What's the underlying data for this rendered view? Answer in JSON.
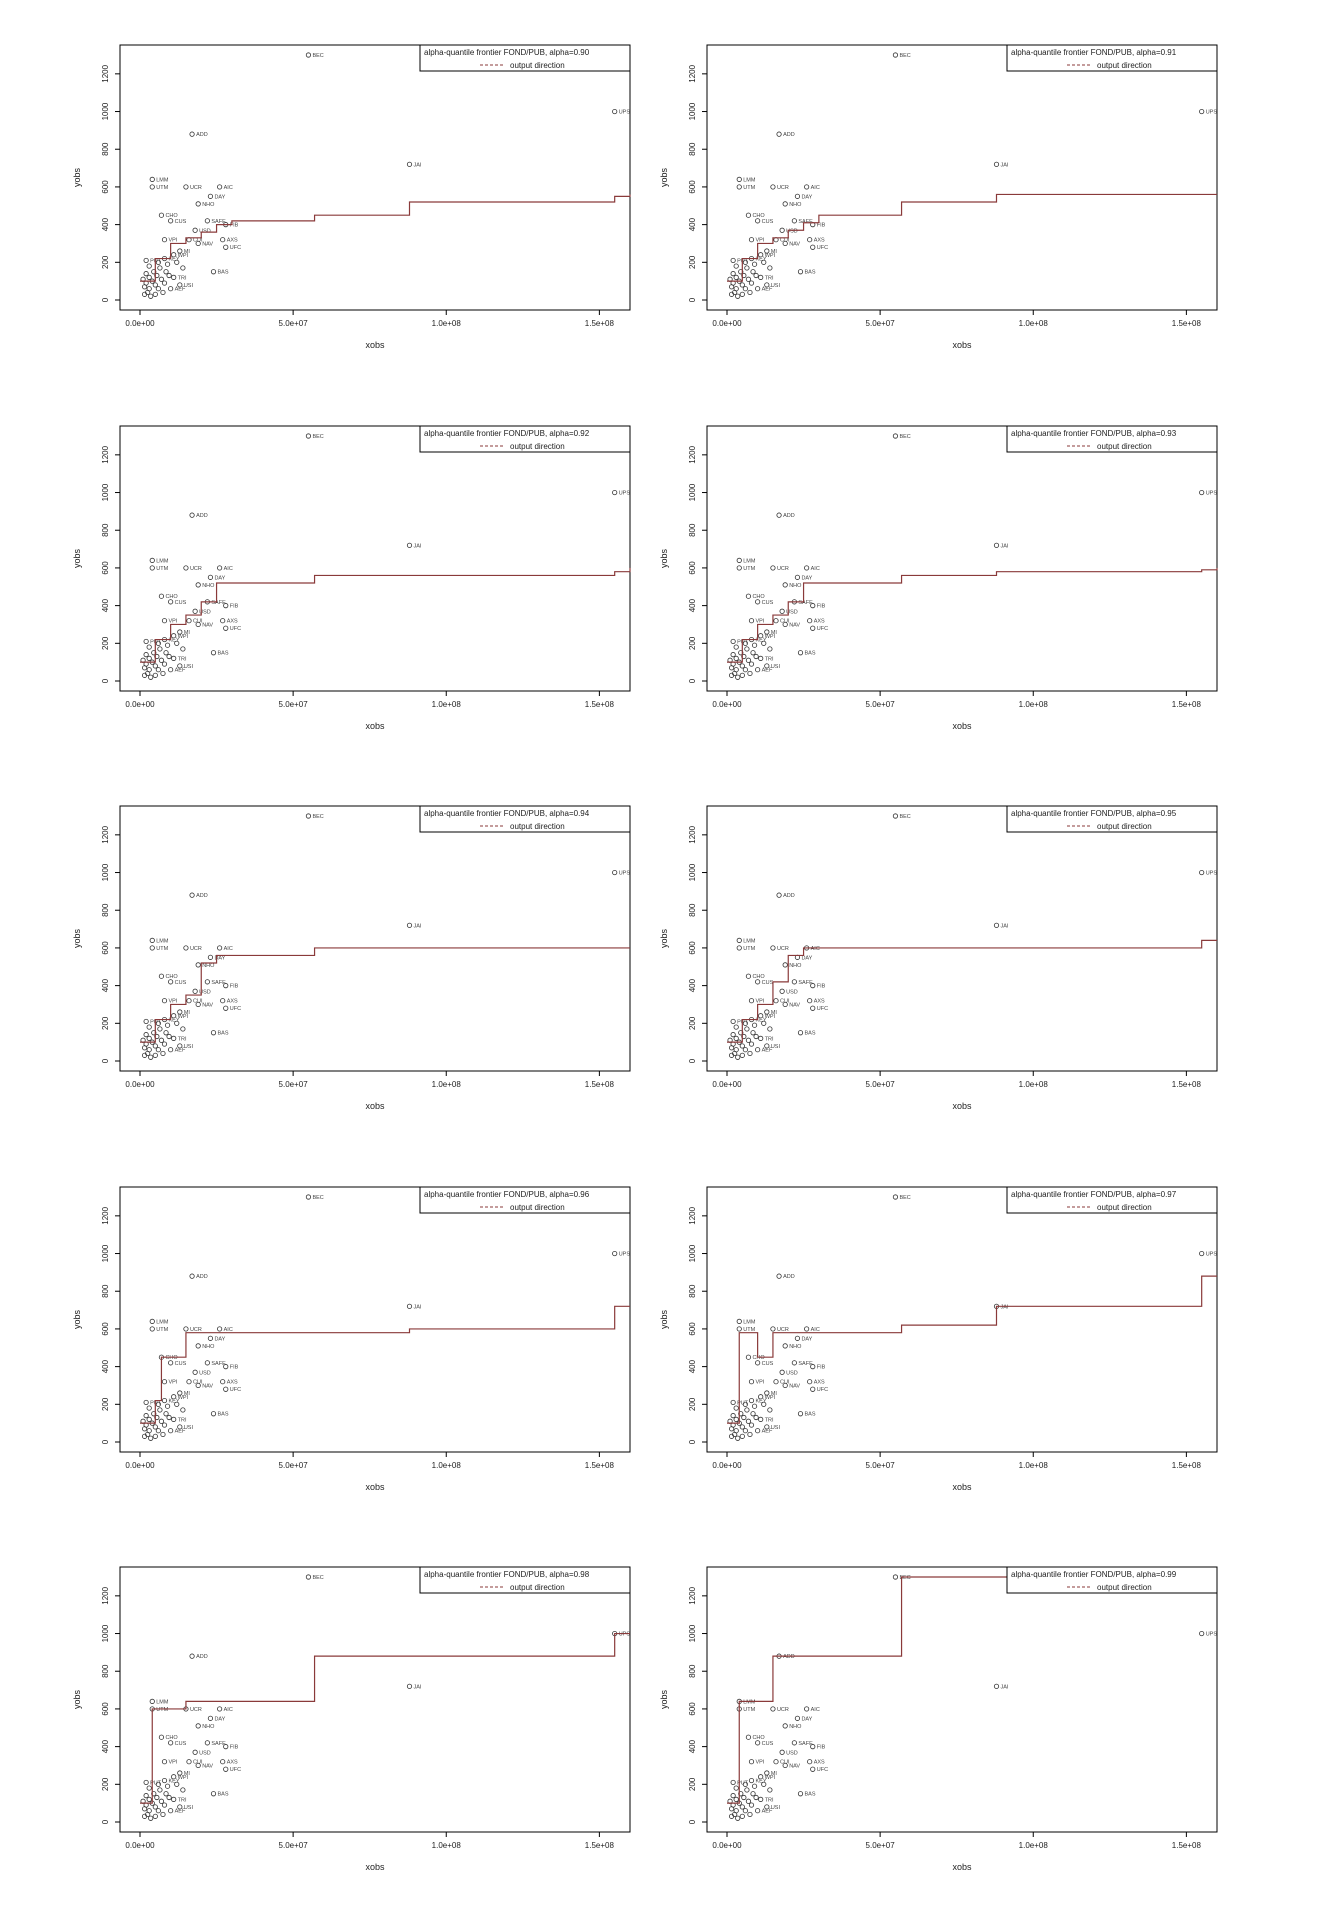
{
  "chart_data": [
    {
      "type": "scatter",
      "title": "",
      "legend": {
        "label": "alpha-quantile frontier FOND/PUB, alpha=0.90",
        "sub": "output direction",
        "position": "top-right"
      },
      "xlabel": "xobs",
      "ylabel": "yobs",
      "xlim": [
        0,
        160000000
      ],
      "ylim": [
        0,
        1300
      ],
      "xticks": [
        "0.0e+00",
        "5.0e+07",
        "1.0e+08",
        "1.5e+08"
      ],
      "yticks": [
        "0",
        "200",
        "400",
        "600",
        "800",
        "1000",
        "1200"
      ],
      "frontier": {
        "x": [
          0,
          5000000,
          10000000,
          15000000,
          20000000,
          25000000,
          30000000,
          57000000,
          88000000,
          155000000,
          160000000
        ],
        "y": [
          100,
          220,
          300,
          330,
          360,
          400,
          420,
          450,
          520,
          550,
          560
        ]
      }
    },
    {
      "type": "scatter",
      "title": "",
      "legend": {
        "label": "alpha-quantile frontier FOND/PUB, alpha=0.91",
        "sub": "output direction",
        "position": "top-right"
      },
      "xlabel": "xobs",
      "ylabel": "yobs",
      "xlim": [
        0,
        160000000
      ],
      "ylim": [
        0,
        1300
      ],
      "xticks": [
        "0.0e+00",
        "5.0e+07",
        "1.0e+08",
        "1.5e+08"
      ],
      "yticks": [
        "0",
        "200",
        "400",
        "600",
        "800",
        "1000",
        "1200"
      ],
      "frontier": {
        "x": [
          0,
          5000000,
          10000000,
          15000000,
          20000000,
          25000000,
          30000000,
          57000000,
          88000000,
          160000000
        ],
        "y": [
          100,
          220,
          300,
          330,
          370,
          410,
          450,
          520,
          560,
          560
        ]
      }
    },
    {
      "type": "scatter",
      "title": "",
      "legend": {
        "label": "alpha-quantile frontier FOND/PUB, alpha=0.92",
        "sub": "output direction",
        "position": "top-right"
      },
      "xlabel": "xobs",
      "ylabel": "yobs",
      "xlim": [
        0,
        160000000
      ],
      "ylim": [
        0,
        1300
      ],
      "xticks": [
        "0.0e+00",
        "5.0e+07",
        "1.0e+08",
        "1.5e+08"
      ],
      "yticks": [
        "0",
        "200",
        "400",
        "600",
        "800",
        "1000",
        "1200"
      ],
      "frontier": {
        "x": [
          0,
          5000000,
          10000000,
          15000000,
          20000000,
          25000000,
          57000000,
          155000000,
          160000000
        ],
        "y": [
          100,
          220,
          300,
          350,
          420,
          520,
          560,
          580,
          600
        ]
      }
    },
    {
      "type": "scatter",
      "title": "",
      "legend": {
        "label": "alpha-quantile frontier FOND/PUB, alpha=0.93",
        "sub": "output direction",
        "position": "top-right"
      },
      "xlabel": "xobs",
      "ylabel": "yobs",
      "xlim": [
        0,
        160000000
      ],
      "ylim": [
        0,
        1300
      ],
      "xticks": [
        "0.0e+00",
        "5.0e+07",
        "1.0e+08",
        "1.5e+08"
      ],
      "yticks": [
        "0",
        "200",
        "400",
        "600",
        "800",
        "1000",
        "1200"
      ],
      "frontier": {
        "x": [
          0,
          5000000,
          10000000,
          15000000,
          20000000,
          25000000,
          57000000,
          88000000,
          155000000,
          160000000
        ],
        "y": [
          100,
          220,
          300,
          350,
          420,
          520,
          560,
          580,
          590,
          600
        ]
      }
    },
    {
      "type": "scatter",
      "title": "",
      "legend": {
        "label": "alpha-quantile frontier FOND/PUB, alpha=0.94",
        "sub": "output direction",
        "position": "top-right"
      },
      "xlabel": "xobs",
      "ylabel": "yobs",
      "xlim": [
        0,
        160000000
      ],
      "ylim": [
        0,
        1300
      ],
      "xticks": [
        "0.0e+00",
        "5.0e+07",
        "1.0e+08",
        "1.5e+08"
      ],
      "yticks": [
        "0",
        "200",
        "400",
        "600",
        "800",
        "1000",
        "1200"
      ],
      "frontier": {
        "x": [
          0,
          5000000,
          10000000,
          15000000,
          20000000,
          25000000,
          57000000,
          160000000
        ],
        "y": [
          100,
          220,
          300,
          350,
          520,
          560,
          600,
          600
        ]
      }
    },
    {
      "type": "scatter",
      "title": "",
      "legend": {
        "label": "alpha-quantile frontier FOND/PUB, alpha=0.95",
        "sub": "output direction",
        "position": "top-right"
      },
      "xlabel": "xobs",
      "ylabel": "yobs",
      "xlim": [
        0,
        160000000
      ],
      "ylim": [
        0,
        1300
      ],
      "xticks": [
        "0.0e+00",
        "5.0e+07",
        "1.0e+08",
        "1.5e+08"
      ],
      "yticks": [
        "0",
        "200",
        "400",
        "600",
        "800",
        "1000",
        "1200"
      ],
      "frontier": {
        "x": [
          0,
          5000000,
          10000000,
          15000000,
          20000000,
          25000000,
          155000000,
          160000000
        ],
        "y": [
          100,
          220,
          300,
          420,
          560,
          600,
          640,
          640
        ]
      }
    },
    {
      "type": "scatter",
      "title": "",
      "legend": {
        "label": "alpha-quantile frontier FOND/PUB, alpha=0.96",
        "sub": "output direction",
        "position": "top-right"
      },
      "xlabel": "xobs",
      "ylabel": "yobs",
      "xlim": [
        0,
        160000000
      ],
      "ylim": [
        0,
        1300
      ],
      "xticks": [
        "0.0e+00",
        "5.0e+07",
        "1.0e+08",
        "1.5e+08"
      ],
      "yticks": [
        "0",
        "200",
        "400",
        "600",
        "800",
        "1000",
        "1200"
      ],
      "frontier": {
        "x": [
          0,
          5000000,
          7000000,
          15000000,
          88000000,
          155000000,
          160000000
        ],
        "y": [
          100,
          220,
          450,
          580,
          600,
          720,
          720
        ]
      }
    },
    {
      "type": "scatter",
      "title": "",
      "legend": {
        "label": "alpha-quantile frontier FOND/PUB, alpha=0.97",
        "sub": "output direction",
        "position": "top-right"
      },
      "xlabel": "xobs",
      "ylabel": "yobs",
      "xlim": [
        0,
        160000000
      ],
      "ylim": [
        0,
        1300
      ],
      "xticks": [
        "0.0e+00",
        "5.0e+07",
        "1.0e+08",
        "1.5e+08"
      ],
      "yticks": [
        "0",
        "200",
        "400",
        "600",
        "800",
        "1000",
        "1200"
      ],
      "frontier": {
        "x": [
          0,
          4000000,
          10000000,
          15000000,
          57000000,
          88000000,
          155000000,
          160000000
        ],
        "y": [
          100,
          580,
          450,
          580,
          620,
          720,
          880,
          880
        ]
      }
    },
    {
      "type": "scatter",
      "title": "",
      "legend": {
        "label": "alpha-quantile frontier FOND/PUB, alpha=0.98",
        "sub": "output direction",
        "position": "top-right"
      },
      "xlabel": "xobs",
      "ylabel": "yobs",
      "xlim": [
        0,
        160000000
      ],
      "ylim": [
        0,
        1300
      ],
      "xticks": [
        "0.0e+00",
        "5.0e+07",
        "1.0e+08",
        "1.5e+08"
      ],
      "yticks": [
        "0",
        "200",
        "400",
        "600",
        "800",
        "1000",
        "1200"
      ],
      "frontier": {
        "x": [
          0,
          4000000,
          15000000,
          57000000,
          155000000,
          160000000
        ],
        "y": [
          100,
          600,
          640,
          880,
          1000,
          1000
        ]
      }
    },
    {
      "type": "scatter",
      "title": "",
      "legend": {
        "label": "alpha-quantile frontier FOND/PUB, alpha=0.99",
        "sub": "output direction",
        "position": "top-right"
      },
      "xlabel": "xobs",
      "ylabel": "yobs",
      "xlim": [
        0,
        160000000
      ],
      "ylim": [
        0,
        1300
      ],
      "xticks": [
        "0.0e+00",
        "5.0e+07",
        "1.0e+08",
        "1.5e+08"
      ],
      "yticks": [
        "0",
        "200",
        "400",
        "600",
        "800",
        "1000",
        "1200"
      ],
      "frontier": {
        "x": [
          0,
          4000000,
          15000000,
          57000000,
          160000000
        ],
        "y": [
          100,
          640,
          880,
          1300,
          1300
        ]
      }
    }
  ],
  "scatter_points": [
    {
      "x": 55000000,
      "y": 1300,
      "label": "BEC"
    },
    {
      "x": 155000000,
      "y": 1000,
      "label": "UPS"
    },
    {
      "x": 17000000,
      "y": 880,
      "label": "ADD"
    },
    {
      "x": 88000000,
      "y": 720,
      "label": "JAI"
    },
    {
      "x": 4000000,
      "y": 640,
      "label": "LMM"
    },
    {
      "x": 4000000,
      "y": 600,
      "label": "UTM"
    },
    {
      "x": 15000000,
      "y": 600,
      "label": "UCR"
    },
    {
      "x": 26000000,
      "y": 600,
      "label": "AIC"
    },
    {
      "x": 23000000,
      "y": 550,
      "label": "DAY"
    },
    {
      "x": 19000000,
      "y": 510,
      "label": "NHO"
    },
    {
      "x": 7000000,
      "y": 450,
      "label": "CHO"
    },
    {
      "x": 10000000,
      "y": 420,
      "label": "CUS"
    },
    {
      "x": 22000000,
      "y": 420,
      "label": "SAFE"
    },
    {
      "x": 28000000,
      "y": 400,
      "label": "FIB"
    },
    {
      "x": 18000000,
      "y": 370,
      "label": "USD"
    },
    {
      "x": 8000000,
      "y": 320,
      "label": "VPI"
    },
    {
      "x": 16000000,
      "y": 320,
      "label": "CUI"
    },
    {
      "x": 19000000,
      "y": 300,
      "label": "NAV"
    },
    {
      "x": 27000000,
      "y": 320,
      "label": "AXS"
    },
    {
      "x": 28000000,
      "y": 280,
      "label": "UFC"
    },
    {
      "x": 13000000,
      "y": 260,
      "label": "MI"
    },
    {
      "x": 11000000,
      "y": 240,
      "label": "WPI"
    },
    {
      "x": 8000000,
      "y": 220,
      "label": "KEY"
    },
    {
      "x": 2000000,
      "y": 210,
      "label": "PUT"
    },
    {
      "x": 24000000,
      "y": 150,
      "label": "BAS"
    },
    {
      "x": 11000000,
      "y": 120,
      "label": "TRI"
    },
    {
      "x": 13000000,
      "y": 80,
      "label": "USI"
    },
    {
      "x": 10000000,
      "y": 60,
      "label": "AEF"
    },
    {
      "x": 2000000,
      "y": 140,
      "label": ""
    },
    {
      "x": 3000000,
      "y": 120,
      "label": ""
    },
    {
      "x": 4000000,
      "y": 100,
      "label": ""
    },
    {
      "x": 5000000,
      "y": 80,
      "label": ""
    },
    {
      "x": 6000000,
      "y": 60,
      "label": ""
    },
    {
      "x": 2500000,
      "y": 40,
      "label": ""
    },
    {
      "x": 3500000,
      "y": 20,
      "label": ""
    },
    {
      "x": 5500000,
      "y": 130,
      "label": ""
    },
    {
      "x": 7000000,
      "y": 110,
      "label": ""
    },
    {
      "x": 8000000,
      "y": 90,
      "label": ""
    },
    {
      "x": 1500000,
      "y": 70,
      "label": ""
    },
    {
      "x": 4500000,
      "y": 150,
      "label": ""
    },
    {
      "x": 6500000,
      "y": 170,
      "label": ""
    },
    {
      "x": 9000000,
      "y": 190,
      "label": ""
    },
    {
      "x": 3000000,
      "y": 180,
      "label": ""
    },
    {
      "x": 1000000,
      "y": 110,
      "label": ""
    },
    {
      "x": 7500000,
      "y": 40,
      "label": ""
    },
    {
      "x": 9500000,
      "y": 130,
      "label": ""
    },
    {
      "x": 12000000,
      "y": 200,
      "label": ""
    },
    {
      "x": 14000000,
      "y": 170,
      "label": ""
    },
    {
      "x": 2000000,
      "y": 90,
      "label": ""
    },
    {
      "x": 5000000,
      "y": 30,
      "label": ""
    },
    {
      "x": 6000000,
      "y": 200,
      "label": ""
    },
    {
      "x": 8500000,
      "y": 150,
      "label": ""
    },
    {
      "x": 3000000,
      "y": 60,
      "label": ""
    },
    {
      "x": 1500000,
      "y": 30,
      "label": ""
    }
  ]
}
